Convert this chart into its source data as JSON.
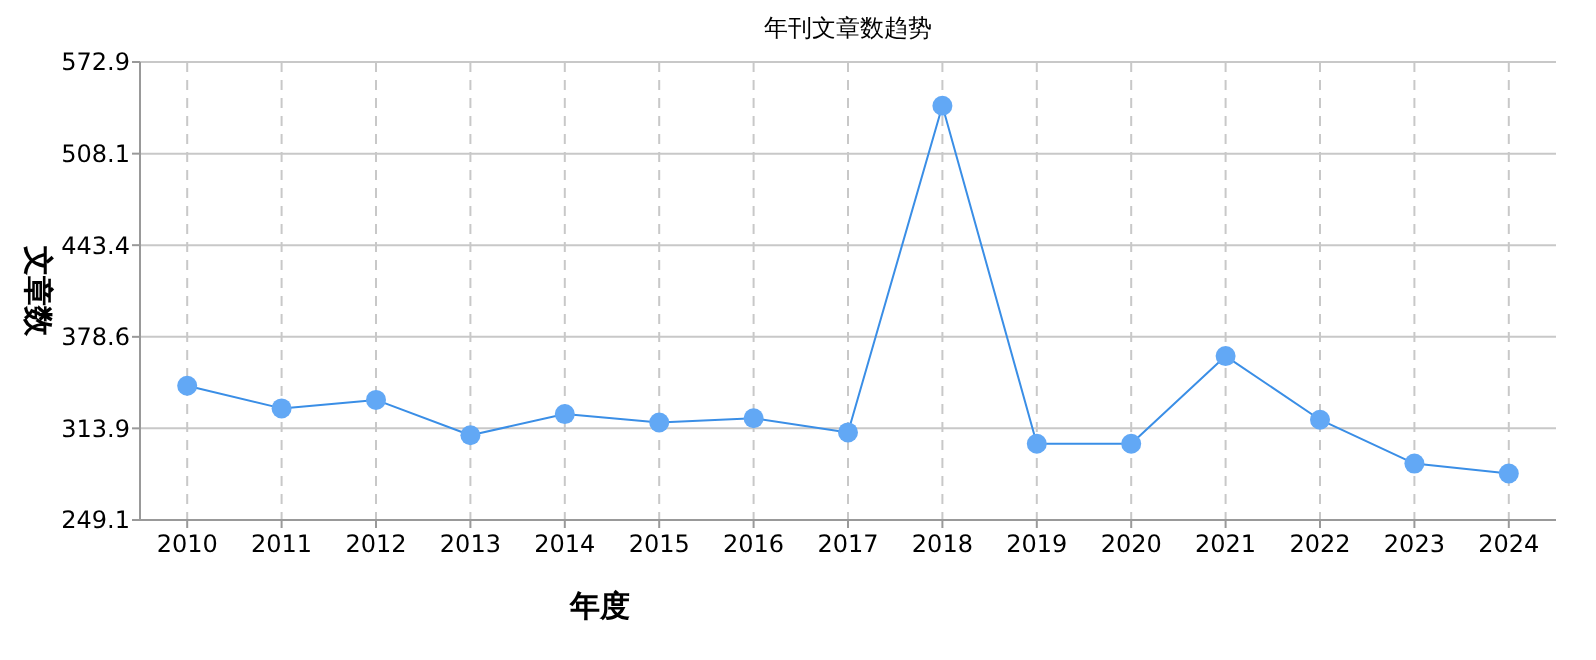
{
  "chart_data": {
    "type": "line",
    "title": "年刊文章数趋势",
    "xlabel": "年度",
    "ylabel": "文章数",
    "categories": [
      "2010",
      "2011",
      "2012",
      "2013",
      "2014",
      "2015",
      "2016",
      "2017",
      "2018",
      "2019",
      "2020",
      "2021",
      "2022",
      "2023",
      "2024"
    ],
    "series": [
      {
        "color": "#3a8ee6",
        "values": [
          344,
          328,
          334,
          309,
          324,
          318,
          321,
          311,
          542,
          303,
          303,
          365,
          320,
          289,
          282
        ]
      }
    ],
    "ylim": [
      249.1,
      572.9
    ],
    "yticks": [
      249.1,
      313.9,
      378.6,
      443.4,
      508.1,
      572.9
    ],
    "grid": true,
    "marker": "circle",
    "line_style": "solid"
  }
}
